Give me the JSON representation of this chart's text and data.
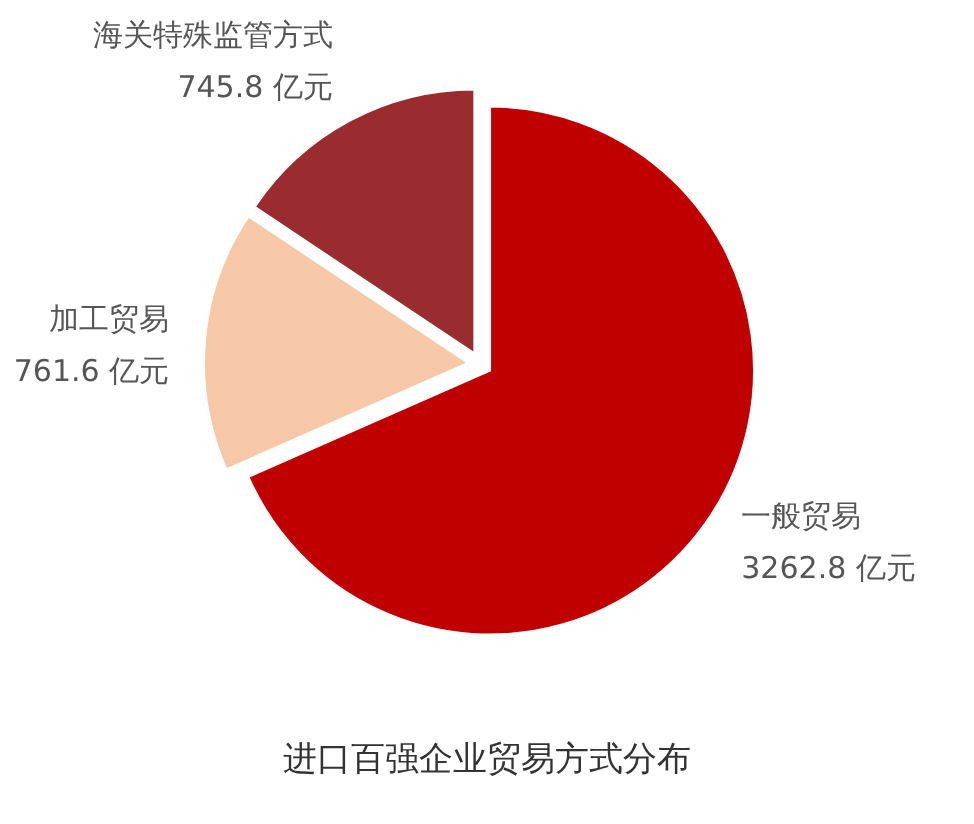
{
  "chart_data": {
    "type": "pie",
    "title": "进口百强企业贸易方式分布",
    "categories": [
      "一般贸易",
      "加工贸易",
      "海关特殊监管方式"
    ],
    "values": [
      3262.8,
      761.6,
      745.8
    ],
    "value_labels": [
      "3262.8 亿元",
      "761.6 亿元",
      "745.8 亿元"
    ],
    "colors": [
      "#c00000",
      "#f6c8a8",
      "#9a2c30"
    ]
  }
}
